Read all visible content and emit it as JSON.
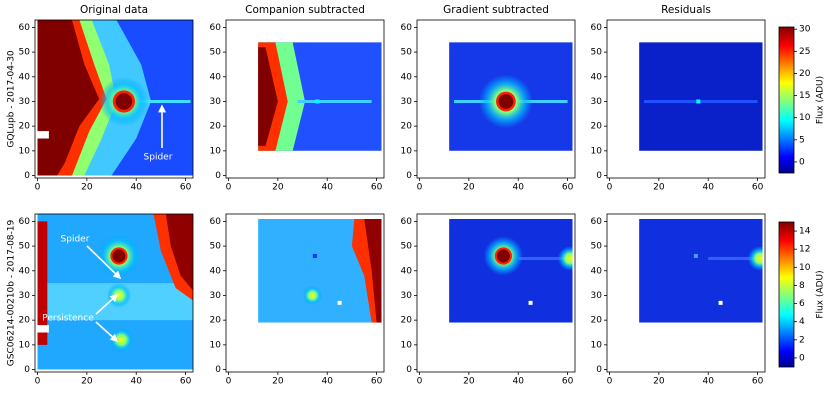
{
  "column_titles": [
    "Original data",
    "Companion subtracted",
    "Gradient subtracted",
    "Residuals"
  ],
  "row_labels": [
    "GQLupb - 2017-04-30",
    "GSC06214-00210b - 2017-08-19"
  ],
  "annotations": [
    "Spider",
    "Spider",
    "Persistence"
  ],
  "chart_data": [
    {
      "type": "heatmap",
      "extent": [
        0,
        63,
        0,
        63
      ],
      "xlim": [
        -1,
        63
      ],
      "ylim": [
        -1,
        63
      ],
      "xticks": [
        0,
        20,
        40,
        60
      ],
      "yticks": [
        0,
        10,
        20,
        30,
        40,
        50,
        60
      ]
    },
    {
      "type": "heatmap",
      "extent": [
        12,
        62,
        10,
        54
      ],
      "xlim": [
        -1,
        63
      ],
      "ylim": [
        -1,
        63
      ],
      "xticks": [
        0,
        20,
        40,
        60
      ],
      "yticks": [
        0,
        10,
        20,
        30,
        40,
        50,
        60
      ]
    },
    {
      "type": "heatmap",
      "extent": [
        12,
        62,
        10,
        54
      ],
      "xlim": [
        -1,
        63
      ],
      "ylim": [
        -1,
        63
      ],
      "xticks": [
        0,
        20,
        40,
        60
      ],
      "yticks": [
        0,
        10,
        20,
        30,
        40,
        50,
        60
      ]
    },
    {
      "type": "heatmap",
      "extent": [
        12,
        62,
        10,
        54
      ],
      "xlim": [
        -1,
        63
      ],
      "ylim": [
        -1,
        63
      ],
      "xticks": [
        0,
        20,
        40,
        60
      ],
      "yticks": [
        0,
        10,
        20,
        30,
        40,
        50,
        60
      ]
    },
    {
      "type": "heatmap",
      "extent": [
        0,
        63,
        0,
        63
      ],
      "xlim": [
        -1,
        63
      ],
      "ylim": [
        -1,
        63
      ],
      "xticks": [
        0,
        20,
        40,
        60
      ],
      "yticks": [
        0,
        10,
        20,
        30,
        40,
        50,
        60
      ]
    },
    {
      "type": "heatmap",
      "extent": [
        12,
        62,
        19,
        61
      ],
      "xlim": [
        -1,
        63
      ],
      "ylim": [
        -1,
        63
      ],
      "xticks": [
        0,
        20,
        40,
        60
      ],
      "yticks": [
        0,
        10,
        20,
        30,
        40,
        50,
        60
      ]
    },
    {
      "type": "heatmap",
      "extent": [
        12,
        62,
        19,
        61
      ],
      "xlim": [
        -1,
        63
      ],
      "ylim": [
        -1,
        63
      ],
      "xticks": [
        0,
        20,
        40,
        60
      ],
      "yticks": [
        0,
        10,
        20,
        30,
        40,
        50,
        60
      ]
    },
    {
      "type": "heatmap",
      "extent": [
        12,
        62,
        19,
        61
      ],
      "xlim": [
        -1,
        63
      ],
      "ylim": [
        -1,
        63
      ],
      "xticks": [
        0,
        20,
        40,
        60
      ],
      "yticks": [
        0,
        10,
        20,
        30,
        40,
        50,
        60
      ]
    }
  ],
  "colorbars": [
    {
      "label": "Flux (ADU)",
      "clim": [
        -2.5,
        30.5
      ],
      "ticks": [
        0,
        5,
        10,
        15,
        20,
        25,
        30
      ]
    },
    {
      "label": "Flux (ADU)",
      "clim": [
        -1,
        15
      ],
      "ticks": [
        0,
        2,
        4,
        6,
        8,
        10,
        12,
        14
      ]
    }
  ]
}
